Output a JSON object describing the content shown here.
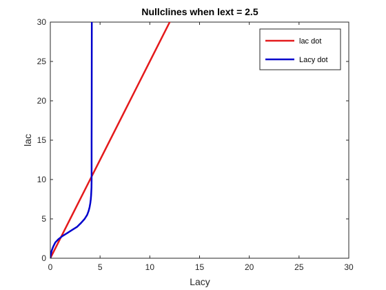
{
  "chart_data": {
    "type": "line",
    "title": "Nullclines when lext = 2.5",
    "xlabel": "Lacy",
    "ylabel": "lac",
    "xlim": [
      0,
      30
    ],
    "ylim": [
      0,
      30
    ],
    "xticks": [
      0,
      5,
      10,
      15,
      20,
      25,
      30
    ],
    "yticks": [
      0,
      5,
      10,
      15,
      20,
      25,
      30
    ],
    "grid": false,
    "legend_position": "top-right",
    "series": [
      {
        "name": "lac dot",
        "color": "#e41a1c",
        "x": [
          0,
          2.5,
          5,
          7.5,
          10,
          12.5
        ],
        "y": [
          0,
          6.25,
          12.5,
          18.75,
          25,
          31.25
        ]
      },
      {
        "name": "Lacy dot",
        "color": "#0000cc",
        "x": [
          0,
          0.05,
          0.15,
          0.3,
          0.5,
          0.8,
          1.2,
          1.7,
          2.2,
          2.7,
          3.1,
          3.45,
          3.7,
          3.85,
          3.95,
          4.02,
          4.07,
          4.1,
          4.12,
          4.14,
          4.15,
          4.15,
          4.15,
          4.16,
          4.17
        ],
        "y": [
          0,
          0.5,
          1.0,
          1.5,
          2.0,
          2.4,
          2.8,
          3.2,
          3.6,
          4.0,
          4.5,
          5.0,
          5.5,
          6.0,
          6.5,
          7.0,
          7.5,
          8.0,
          8.5,
          9.0,
          10.0,
          12.0,
          15.0,
          20.0,
          30.0
        ]
      }
    ]
  }
}
